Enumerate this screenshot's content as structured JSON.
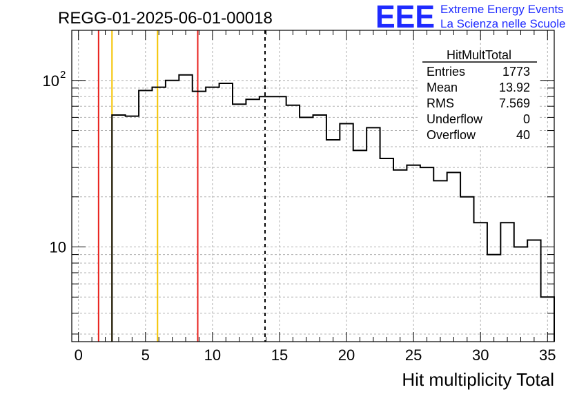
{
  "title": "REGG-01-2025-06-01-00018",
  "logo": {
    "mark": "EEE",
    "line1": "Extreme Energy Events",
    "line2": "La Scienza nelle Scuole",
    "color": "#1f2bff"
  },
  "stats": {
    "name": "HitMultTotal",
    "rows": [
      {
        "label": "Entries",
        "value": "1773"
      },
      {
        "label": "Mean",
        "value": "13.92"
      },
      {
        "label": "RMS",
        "value": "7.569"
      },
      {
        "label": "Underflow",
        "value": "0"
      },
      {
        "label": "Overflow",
        "value": "40"
      }
    ]
  },
  "chart_data": {
    "type": "histogram",
    "title": "REGG-01-2025-06-01-00018",
    "xlabel": "Hit multiplicity Total",
    "ylabel": "",
    "xlim": [
      -0.5,
      35.5
    ],
    "ylim": [
      2.7,
      200
    ],
    "y_scale": "log",
    "grid": true,
    "legend": "top-right",
    "x_ticks": [
      0,
      5,
      10,
      15,
      20,
      25,
      30,
      35
    ],
    "y_tick_labels": [
      {
        "value": 10,
        "label": "10"
      },
      {
        "value": 100,
        "label": "10",
        "exponent": "2"
      }
    ],
    "bin_width": 1,
    "bin_lows": [
      -0.5,
      0.5,
      1.5,
      2.5,
      3.5,
      4.5,
      5.5,
      6.5,
      7.5,
      8.5,
      9.5,
      10.5,
      11.5,
      12.5,
      13.5,
      14.5,
      15.5,
      16.5,
      17.5,
      18.5,
      19.5,
      20.5,
      21.5,
      22.5,
      23.5,
      24.5,
      25.5,
      26.5,
      27.5,
      28.5,
      29.5,
      30.5,
      31.5,
      32.5,
      33.5,
      34.5
    ],
    "counts": [
      0,
      0,
      0,
      62,
      61,
      87,
      91,
      100,
      108,
      86,
      91,
      96,
      72,
      77,
      80,
      80,
      71,
      60,
      62,
      44,
      55,
      38,
      52,
      34,
      29,
      31,
      30,
      25,
      28,
      20,
      14,
      9,
      14,
      10,
      11,
      5
    ],
    "lines": [
      {
        "x": 1.5,
        "color": "#e8201c",
        "style": "solid"
      },
      {
        "x": 2.5,
        "color": "#f5c400",
        "style": "solid"
      },
      {
        "x": 5.9,
        "color": "#f5c400",
        "style": "solid"
      },
      {
        "x": 8.9,
        "color": "#e8201c",
        "style": "solid"
      },
      {
        "x": 13.92,
        "color": "#000000",
        "style": "dashed"
      }
    ]
  }
}
